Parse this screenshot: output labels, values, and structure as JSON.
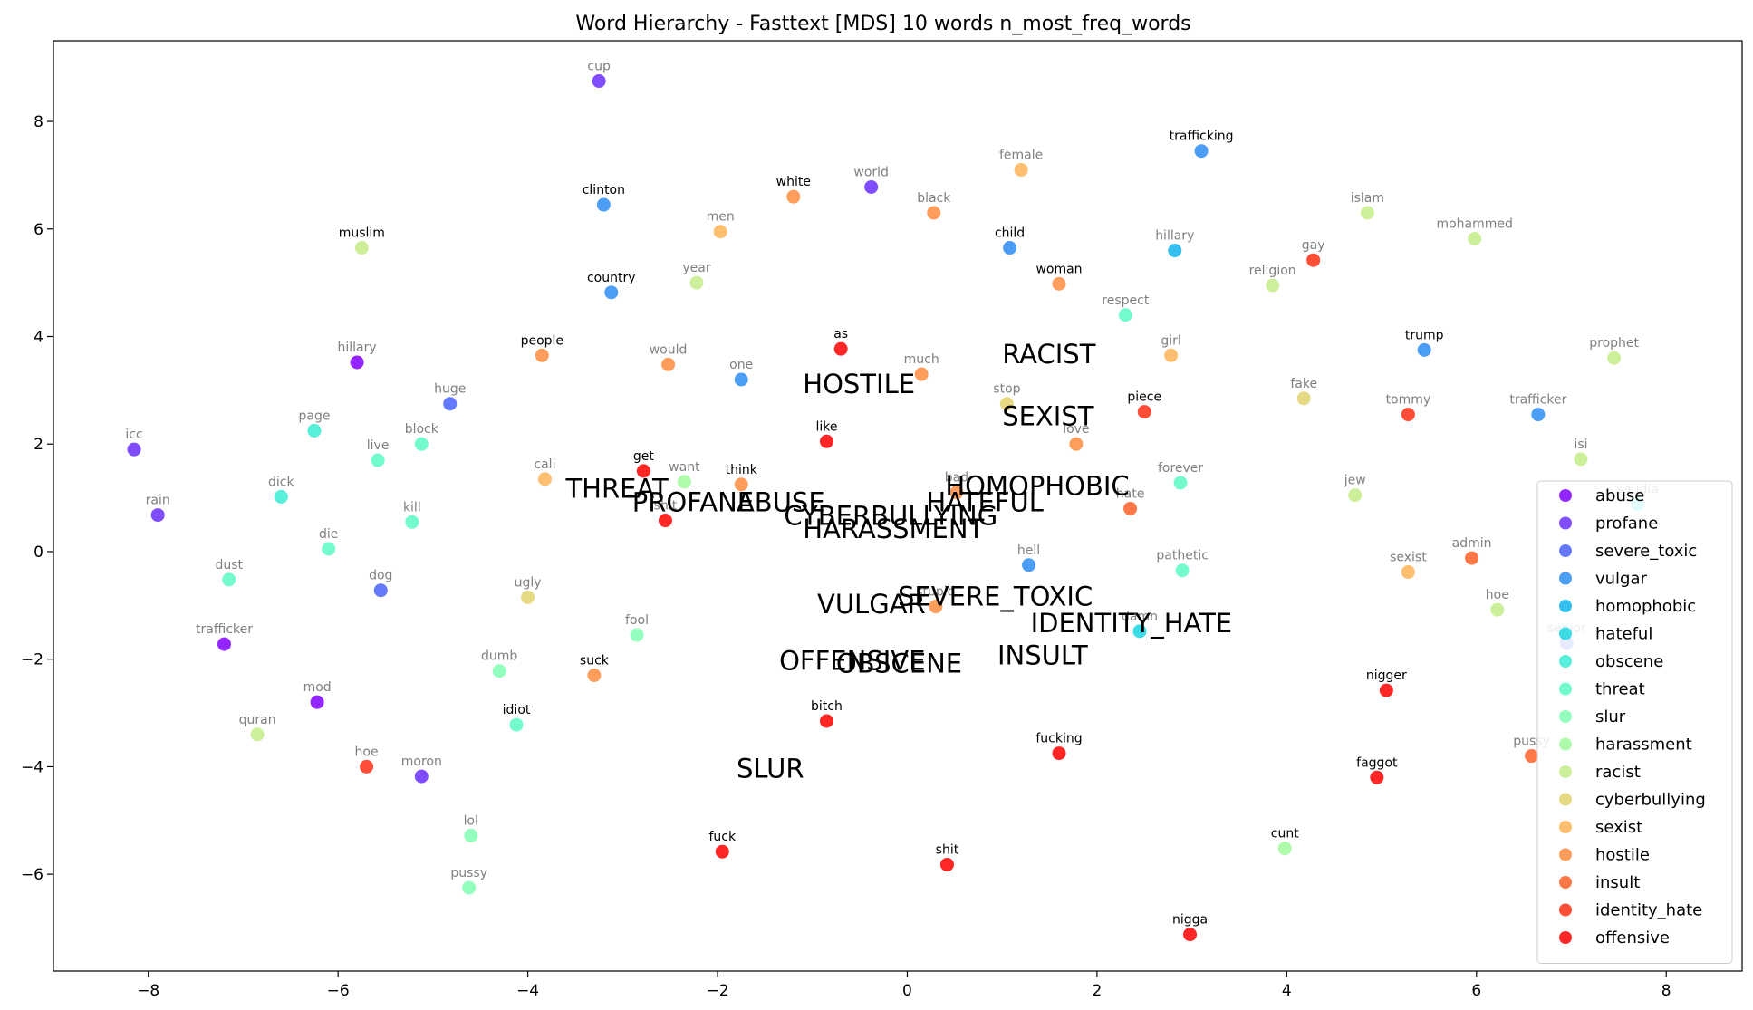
{
  "chart_data": {
    "type": "scatter",
    "title": "Word Hierarchy - Fasttext [MDS] 10 words n_most_freq_words",
    "xlabel": "",
    "ylabel": "",
    "xlim": [
      -9.0,
      8.8
    ],
    "ylim": [
      -7.8,
      9.5
    ],
    "xticks": [
      -8,
      -6,
      -4,
      -2,
      0,
      2,
      4,
      6,
      8
    ],
    "yticks": [
      -6,
      -4,
      -2,
      0,
      2,
      4,
      6,
      8
    ],
    "grid": false,
    "legend_position": "lower-right",
    "categories": [
      {
        "name": "abuse",
        "color": "#8000ff"
      },
      {
        "name": "profane",
        "color": "#6a2efe"
      },
      {
        "name": "severe_toxic",
        "color": "#4a62fb"
      },
      {
        "name": "vulgar",
        "color": "#2c8cf4"
      },
      {
        "name": "homophobic",
        "color": "#10b4ec"
      },
      {
        "name": "hateful",
        "color": "#1ad6e2"
      },
      {
        "name": "obscene",
        "color": "#3aecd4"
      },
      {
        "name": "threat",
        "color": "#5cfac4"
      },
      {
        "name": "slur",
        "color": "#80feb2"
      },
      {
        "name": "harassment",
        "color": "#a0fa9e"
      },
      {
        "name": "racist",
        "color": "#c4ec88"
      },
      {
        "name": "cyberbullying",
        "color": "#e2d470"
      },
      {
        "name": "sexist",
        "color": "#ffb458"
      },
      {
        "name": "hostile",
        "color": "#ff8c40"
      },
      {
        "name": "insult",
        "color": "#ff6028"
      },
      {
        "name": "identity_hate",
        "color": "#ff2e14"
      },
      {
        "name": "offensive",
        "color": "#ff0000"
      }
    ],
    "category_labels": [
      {
        "text": "RACIST",
        "x": 1.0,
        "y": 3.5
      },
      {
        "text": "HOSTILE",
        "x": -1.1,
        "y": 2.95
      },
      {
        "text": "SEXIST",
        "x": 1.0,
        "y": 2.35
      },
      {
        "text": "THREAT",
        "x": -3.6,
        "y": 1.0
      },
      {
        "text": "HOMOPHOBIC",
        "x": 0.4,
        "y": 1.05
      },
      {
        "text": "PROFANE",
        "x": -2.9,
        "y": 0.75
      },
      {
        "text": "ABUSE",
        "x": -1.8,
        "y": 0.75
      },
      {
        "text": "HATEFUL",
        "x": 0.2,
        "y": 0.75
      },
      {
        "text": "CYBERBULLYING",
        "x": -1.3,
        "y": 0.5
      },
      {
        "text": "HARASSMENT",
        "x": -1.1,
        "y": 0.25
      },
      {
        "text": "SEVERE_TOXIC",
        "x": -0.1,
        "y": -1.0
      },
      {
        "text": "VULGAR",
        "x": -0.95,
        "y": -1.15
      },
      {
        "text": "IDENTITY_HATE",
        "x": 1.3,
        "y": -1.5
      },
      {
        "text": "INSULT",
        "x": 0.95,
        "y": -2.1
      },
      {
        "text": "OFFENSIVE",
        "x": -1.35,
        "y": -2.2
      },
      {
        "text": "OBSCENE",
        "x": -0.75,
        "y": -2.25
      },
      {
        "text": "SLUR",
        "x": -1.8,
        "y": -4.2
      }
    ],
    "points": [
      {
        "word": "cup",
        "x": -3.25,
        "y": 8.75,
        "cat": "profane",
        "dark": false
      },
      {
        "word": "white",
        "x": -1.2,
        "y": 6.6,
        "cat": "hostile",
        "dark": true
      },
      {
        "word": "world",
        "x": -0.38,
        "y": 6.78,
        "cat": "profane",
        "dark": false
      },
      {
        "word": "trafficking",
        "x": 3.1,
        "y": 7.45,
        "cat": "vulgar",
        "dark": true
      },
      {
        "word": "clinton",
        "x": -3.2,
        "y": 6.45,
        "cat": "vulgar",
        "dark": true
      },
      {
        "word": "female",
        "x": 1.2,
        "y": 7.1,
        "cat": "sexist",
        "dark": false
      },
      {
        "word": "black",
        "x": 0.28,
        "y": 6.3,
        "cat": "hostile",
        "dark": false
      },
      {
        "word": "muslim",
        "x": -5.75,
        "y": 5.65,
        "cat": "racist",
        "dark": true
      },
      {
        "word": "men",
        "x": -1.97,
        "y": 5.95,
        "cat": "sexist",
        "dark": false
      },
      {
        "word": "islam",
        "x": 4.85,
        "y": 6.3,
        "cat": "racist",
        "dark": false
      },
      {
        "word": "mohammed",
        "x": 5.98,
        "y": 5.82,
        "cat": "racist",
        "dark": false
      },
      {
        "word": "child",
        "x": 1.08,
        "y": 5.65,
        "cat": "vulgar",
        "dark": true
      },
      {
        "word": "hillary",
        "x": 2.82,
        "y": 5.6,
        "cat": "homophobic",
        "dark": false
      },
      {
        "word": "gay",
        "x": 4.28,
        "y": 5.42,
        "cat": "identity_hate",
        "dark": false
      },
      {
        "word": "country",
        "x": -3.12,
        "y": 4.82,
        "cat": "vulgar",
        "dark": true
      },
      {
        "word": "year",
        "x": -2.22,
        "y": 5.0,
        "cat": "racist",
        "dark": false
      },
      {
        "word": "woman",
        "x": 1.6,
        "y": 4.98,
        "cat": "hostile",
        "dark": true
      },
      {
        "word": "religion",
        "x": 3.85,
        "y": 4.95,
        "cat": "racist",
        "dark": false
      },
      {
        "word": "respect",
        "x": 2.3,
        "y": 4.4,
        "cat": "threat",
        "dark": false
      },
      {
        "word": "hillary",
        "x": -5.8,
        "y": 3.52,
        "cat": "abuse",
        "dark": false
      },
      {
        "word": "people",
        "x": -3.85,
        "y": 3.65,
        "cat": "hostile",
        "dark": true
      },
      {
        "word": "would",
        "x": -2.52,
        "y": 3.48,
        "cat": "hostile",
        "dark": false
      },
      {
        "word": "as",
        "x": -0.7,
        "y": 3.77,
        "cat": "offensive",
        "dark": true
      },
      {
        "word": "trump",
        "x": 5.45,
        "y": 3.75,
        "cat": "vulgar",
        "dark": true
      },
      {
        "word": "prophet",
        "x": 7.45,
        "y": 3.6,
        "cat": "racist",
        "dark": false
      },
      {
        "word": "girl",
        "x": 2.78,
        "y": 3.65,
        "cat": "sexist",
        "dark": false
      },
      {
        "word": "one",
        "x": -1.75,
        "y": 3.2,
        "cat": "vulgar",
        "dark": false
      },
      {
        "word": "much",
        "x": 0.15,
        "y": 3.3,
        "cat": "hostile",
        "dark": false
      },
      {
        "word": "huge",
        "x": -4.82,
        "y": 2.75,
        "cat": "severe_toxic",
        "dark": false
      },
      {
        "word": "stop",
        "x": 1.05,
        "y": 2.75,
        "cat": "cyberbullying",
        "dark": false
      },
      {
        "word": "fake",
        "x": 4.18,
        "y": 2.85,
        "cat": "cyberbullying",
        "dark": false
      },
      {
        "word": "piece",
        "x": 2.5,
        "y": 2.6,
        "cat": "identity_hate",
        "dark": true
      },
      {
        "word": "tommy",
        "x": 5.28,
        "y": 2.55,
        "cat": "identity_hate",
        "dark": false
      },
      {
        "word": "trafficker",
        "x": 6.65,
        "y": 2.55,
        "cat": "vulgar",
        "dark": false
      },
      {
        "word": "page",
        "x": -6.25,
        "y": 2.25,
        "cat": "obscene",
        "dark": false
      },
      {
        "word": "icc",
        "x": -8.15,
        "y": 1.9,
        "cat": "profane",
        "dark": false
      },
      {
        "word": "live",
        "x": -5.58,
        "y": 1.7,
        "cat": "threat",
        "dark": false
      },
      {
        "word": "block",
        "x": -5.12,
        "y": 2.0,
        "cat": "threat",
        "dark": false
      },
      {
        "word": "like",
        "x": -0.85,
        "y": 2.05,
        "cat": "offensive",
        "dark": true
      },
      {
        "word": "love",
        "x": 1.78,
        "y": 2.0,
        "cat": "hostile",
        "dark": false
      },
      {
        "word": "isi",
        "x": 7.1,
        "y": 1.72,
        "cat": "racist",
        "dark": false
      },
      {
        "word": "get",
        "x": -2.78,
        "y": 1.5,
        "cat": "offensive",
        "dark": true
      },
      {
        "word": "call",
        "x": -3.82,
        "y": 1.35,
        "cat": "sexist",
        "dark": false
      },
      {
        "word": "want",
        "x": -2.35,
        "y": 1.3,
        "cat": "harassment",
        "dark": false
      },
      {
        "word": "think",
        "x": -1.75,
        "y": 1.25,
        "cat": "hostile",
        "dark": true
      },
      {
        "word": "bad",
        "x": 0.52,
        "y": 1.1,
        "cat": "hostile",
        "dark": false
      },
      {
        "word": "forever",
        "x": 2.88,
        "y": 1.28,
        "cat": "threat",
        "dark": false
      },
      {
        "word": "jew",
        "x": 4.72,
        "y": 1.05,
        "cat": "racist",
        "dark": false
      },
      {
        "word": "dick",
        "x": -6.6,
        "y": 1.02,
        "cat": "obscene",
        "dark": false
      },
      {
        "word": "rain",
        "x": -7.9,
        "y": 0.68,
        "cat": "profane",
        "dark": false
      },
      {
        "word": "kill",
        "x": -5.22,
        "y": 0.55,
        "cat": "threat",
        "dark": false
      },
      {
        "word": "hate",
        "x": 2.35,
        "y": 0.8,
        "cat": "insult",
        "dark": false
      },
      {
        "word": "shit",
        "x": -2.55,
        "y": 0.58,
        "cat": "offensive",
        "dark": false
      },
      {
        "word": "saudia",
        "x": 7.7,
        "y": 0.88,
        "cat": "hateful",
        "dark": false
      },
      {
        "word": "die",
        "x": -6.1,
        "y": 0.05,
        "cat": "threat",
        "dark": false
      },
      {
        "word": "admin",
        "x": 5.95,
        "y": -0.12,
        "cat": "insult",
        "dark": false
      },
      {
        "word": "hell",
        "x": 1.28,
        "y": -0.25,
        "cat": "vulgar",
        "dark": false
      },
      {
        "word": "pathetic",
        "x": 2.9,
        "y": -0.35,
        "cat": "threat",
        "dark": false
      },
      {
        "word": "sexist",
        "x": 5.28,
        "y": -0.38,
        "cat": "sexist",
        "dark": false
      },
      {
        "word": "dust",
        "x": -7.15,
        "y": -0.52,
        "cat": "threat",
        "dark": false
      },
      {
        "word": "dog",
        "x": -5.55,
        "y": -0.72,
        "cat": "severe_toxic",
        "dark": false
      },
      {
        "word": "ugly",
        "x": -4.0,
        "y": -0.85,
        "cat": "cyberbullying",
        "dark": false
      },
      {
        "word": "stupid",
        "x": 0.3,
        "y": -1.02,
        "cat": "hostile",
        "dark": false
      },
      {
        "word": "hoe",
        "x": 6.22,
        "y": -1.08,
        "cat": "racist",
        "dark": false
      },
      {
        "word": "fool",
        "x": -2.85,
        "y": -1.55,
        "cat": "slur",
        "dark": false
      },
      {
        "word": "damn",
        "x": 2.45,
        "y": -1.48,
        "cat": "hateful",
        "dark": false
      },
      {
        "word": "senior",
        "x": 6.95,
        "y": -1.7,
        "cat": "severe_toxic",
        "dark": false
      },
      {
        "word": "trafficker",
        "x": -7.2,
        "y": -1.72,
        "cat": "abuse",
        "dark": false
      },
      {
        "word": "dumb",
        "x": -4.3,
        "y": -2.22,
        "cat": "slur",
        "dark": false
      },
      {
        "word": "suck",
        "x": -3.3,
        "y": -2.3,
        "cat": "hostile",
        "dark": true
      },
      {
        "word": "nigger",
        "x": 5.05,
        "y": -2.58,
        "cat": "offensive",
        "dark": true
      },
      {
        "word": "mod",
        "x": -6.22,
        "y": -2.8,
        "cat": "abuse",
        "dark": false
      },
      {
        "word": "idiot",
        "x": -4.12,
        "y": -3.22,
        "cat": "threat",
        "dark": true
      },
      {
        "word": "bitch",
        "x": -0.85,
        "y": -3.15,
        "cat": "offensive",
        "dark": true
      },
      {
        "word": "quran",
        "x": -6.85,
        "y": -3.4,
        "cat": "racist",
        "dark": false
      },
      {
        "word": "fucking",
        "x": 1.6,
        "y": -3.75,
        "cat": "offensive",
        "dark": true
      },
      {
        "word": "pussy",
        "x": 6.58,
        "y": -3.8,
        "cat": "insult",
        "dark": false
      },
      {
        "word": "hoe",
        "x": -5.7,
        "y": -4.0,
        "cat": "identity_hate",
        "dark": false
      },
      {
        "word": "moron",
        "x": -5.12,
        "y": -4.18,
        "cat": "profane",
        "dark": false
      },
      {
        "word": "faggot",
        "x": 4.95,
        "y": -4.2,
        "cat": "offensive",
        "dark": true
      },
      {
        "word": "lol",
        "x": -4.6,
        "y": -5.28,
        "cat": "slur",
        "dark": false
      },
      {
        "word": "fuck",
        "x": -1.95,
        "y": -5.58,
        "cat": "offensive",
        "dark": true
      },
      {
        "word": "cunt",
        "x": 3.98,
        "y": -5.52,
        "cat": "harassment",
        "dark": true
      },
      {
        "word": "shit",
        "x": 0.42,
        "y": -5.82,
        "cat": "offensive",
        "dark": true
      },
      {
        "word": "pussy",
        "x": -4.62,
        "y": -6.25,
        "cat": "slur",
        "dark": false
      },
      {
        "word": "nigga",
        "x": 2.98,
        "y": -7.12,
        "cat": "offensive",
        "dark": true
      }
    ]
  }
}
